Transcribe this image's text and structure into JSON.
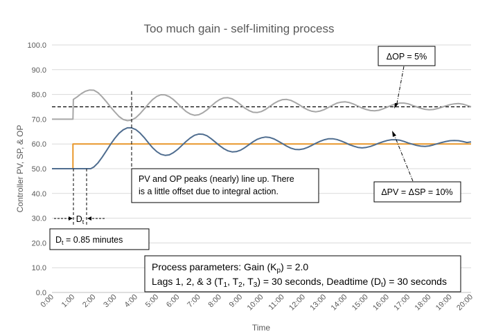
{
  "chart_data": {
    "type": "line",
    "title": "Too much gain - self-limiting process",
    "xlabel": "Time",
    "ylabel": "Controller PV, SP, & OP",
    "xlim": [
      0,
      20
    ],
    "ylim": [
      0,
      100
    ],
    "x_tick_labels": [
      "0:00",
      "1:00",
      "2:00",
      "3:00",
      "4:00",
      "5:00",
      "6:00",
      "7:00",
      "8:00",
      "9:00",
      "10:00",
      "11:00",
      "12:00",
      "13:00",
      "14:00",
      "15:00",
      "16:00",
      "17:00",
      "18:00",
      "19:00",
      "20:00"
    ],
    "y_tick_labels": [
      "0.0",
      "10.0",
      "20.0",
      "30.0",
      "40.0",
      "50.0",
      "60.0",
      "70.0",
      "80.0",
      "90.0",
      "100.0"
    ],
    "grid": "horizontal",
    "colors": {
      "pv": "#4f6d8f",
      "sp": "#e8972a",
      "op": "#a6a6a6",
      "ref": "#000000"
    },
    "series": [
      {
        "key": "op",
        "x": [
          0,
          0.5,
          1,
          1.02,
          1.2,
          1.4,
          1.6,
          1.8,
          2,
          2.2,
          2.4,
          2.6,
          2.8,
          3,
          3.2,
          3.4,
          3.6,
          3.8,
          4,
          4.2,
          4.4,
          4.6,
          4.8,
          5,
          5.2,
          5.4,
          5.6,
          5.8,
          6,
          6.2,
          6.4,
          6.6,
          6.8,
          7,
          7.2,
          7.4,
          7.6,
          7.8,
          8,
          8.2,
          8.4,
          8.6,
          8.8,
          9,
          9.2,
          9.4,
          9.6,
          9.8,
          10,
          10.2,
          10.4,
          10.6,
          10.8,
          11,
          11.2,
          11.4,
          11.6,
          11.8,
          12,
          12.2,
          12.4,
          12.6,
          12.8,
          13,
          13.2,
          13.4,
          13.6,
          13.8,
          14,
          14.2,
          14.4,
          14.6,
          14.8,
          15,
          15.2,
          15.4,
          15.6,
          15.8,
          16,
          16.2,
          16.4,
          16.6,
          16.8,
          17,
          17.2,
          17.4,
          17.6,
          17.8,
          18,
          18.2,
          18.4,
          18.6,
          18.8,
          19,
          19.2,
          19.4,
          19.6,
          19.8,
          20
        ],
        "y": [
          70,
          70,
          70,
          78,
          79,
          80.3,
          81.3,
          81.8,
          81.7,
          80.7,
          79,
          77,
          74.9,
          72.9,
          71.1,
          69.9,
          69.4,
          69.6,
          70.6,
          72.2,
          74.1,
          76.1,
          77.9,
          79.2,
          79.9,
          79.8,
          79.1,
          77.9,
          76.3,
          74.6,
          73.1,
          72.1,
          71.6,
          71.8,
          72.6,
          73.8,
          75.3,
          76.8,
          77.9,
          78.6,
          78.7,
          78.2,
          77.2,
          75.9,
          74.5,
          73.5,
          72.8,
          72.7,
          73.1,
          74,
          75.2,
          76.4,
          77.3,
          77.9,
          78,
          77.6,
          76.8,
          75.8,
          74.7,
          73.8,
          73.2,
          73,
          73.3,
          73.9,
          74.8,
          75.7,
          76.5,
          76.9,
          77,
          76.7,
          76.1,
          75.3,
          74.5,
          73.9,
          73.5,
          73.4,
          73.6,
          74.2,
          74.9,
          75.6,
          76.2,
          76.5,
          76.5,
          76.2,
          75.6,
          75,
          74.4,
          74,
          73.8,
          73.9,
          74.3,
          74.8,
          75.4,
          75.9,
          76.2,
          76.3,
          76.1,
          75.6,
          75
        ]
      },
      {
        "key": "sp",
        "x": [
          0,
          1,
          1,
          20
        ],
        "y": [
          50,
          50,
          60,
          60
        ]
      },
      {
        "key": "pv",
        "x": [
          0,
          0.5,
          1,
          1.5,
          1.85,
          2,
          2.2,
          2.4,
          2.6,
          2.8,
          3,
          3.2,
          3.4,
          3.6,
          3.8,
          4,
          4.2,
          4.4,
          4.6,
          4.8,
          5,
          5.2,
          5.4,
          5.6,
          5.8,
          6,
          6.2,
          6.4,
          6.6,
          6.8,
          7,
          7.2,
          7.4,
          7.6,
          7.8,
          8,
          8.2,
          8.4,
          8.6,
          8.8,
          9,
          9.2,
          9.4,
          9.6,
          9.8,
          10,
          10.2,
          10.4,
          10.6,
          10.8,
          11,
          11.2,
          11.4,
          11.6,
          11.8,
          12,
          12.2,
          12.4,
          12.6,
          12.8,
          13,
          13.2,
          13.4,
          13.6,
          13.8,
          14,
          14.2,
          14.4,
          14.6,
          14.8,
          15,
          15.2,
          15.4,
          15.6,
          15.8,
          16,
          16.2,
          16.4,
          16.6,
          16.8,
          17,
          17.2,
          17.4,
          17.6,
          17.8,
          18,
          18.2,
          18.4,
          18.6,
          18.8,
          19,
          19.2,
          19.4,
          19.6,
          19.8,
          20
        ],
        "y": [
          50,
          50,
          50,
          50,
          50,
          50.7,
          52.4,
          54.7,
          57.3,
          59.9,
          62.3,
          64.3,
          65.7,
          66.5,
          66.5,
          65.8,
          64.4,
          62.6,
          60.5,
          58.5,
          56.9,
          55.8,
          55.4,
          55.6,
          56.5,
          57.8,
          59.4,
          61,
          62.4,
          63.5,
          64,
          63.9,
          63.3,
          62.1,
          60.7,
          59.3,
          58.1,
          57.2,
          56.8,
          56.9,
          57.5,
          58.5,
          59.7,
          60.9,
          61.9,
          62.5,
          62.8,
          62.6,
          62,
          61.1,
          60.1,
          59.1,
          58.3,
          57.8,
          57.7,
          58,
          58.6,
          59.4,
          60.3,
          61.1,
          61.7,
          62.1,
          62.1,
          61.8,
          61.2,
          60.5,
          59.7,
          59.1,
          58.6,
          58.4,
          58.6,
          59,
          59.6,
          60.3,
          60.9,
          61.4,
          61.7,
          61.7,
          61.5,
          61,
          60.4,
          59.9,
          59.4,
          59.1,
          59,
          59.2,
          59.6,
          60.1,
          60.6,
          61,
          61.3,
          61.4,
          61.3,
          61,
          60.6,
          60.8
        ]
      },
      {
        "key": "ref75",
        "x": [
          0,
          20
        ],
        "y": [
          75,
          75
        ]
      }
    ],
    "annotations": {
      "delta_op": "ΔOP = 5%",
      "peaks_line1": "PV and OP peaks (nearly) line up.  There",
      "peaks_line2": "is a little offset due to integral action.",
      "delta_pv": "ΔPV = ΔSP = 10%",
      "dt_marker": "D",
      "dt_sub": "t",
      "dt_value_d": "D",
      "dt_value_sub": "t",
      "dt_value_rest": " = 0.85 minutes",
      "params_line1_a": "Process parameters:  Gain (K",
      "params_line1_sub": "p",
      "params_line1_b": ") = 2.0",
      "params_line2_a": "Lags 1, 2, & 3 (T",
      "params_line2_s1": "1",
      "params_line2_b": ", T",
      "params_line2_s2": "2",
      "params_line2_c": ", T",
      "params_line2_s3": "3",
      "params_line2_d": ") = 30 seconds, Deadtime (D",
      "params_line2_s4": "t",
      "params_line2_e": ") = 30 seconds"
    }
  }
}
